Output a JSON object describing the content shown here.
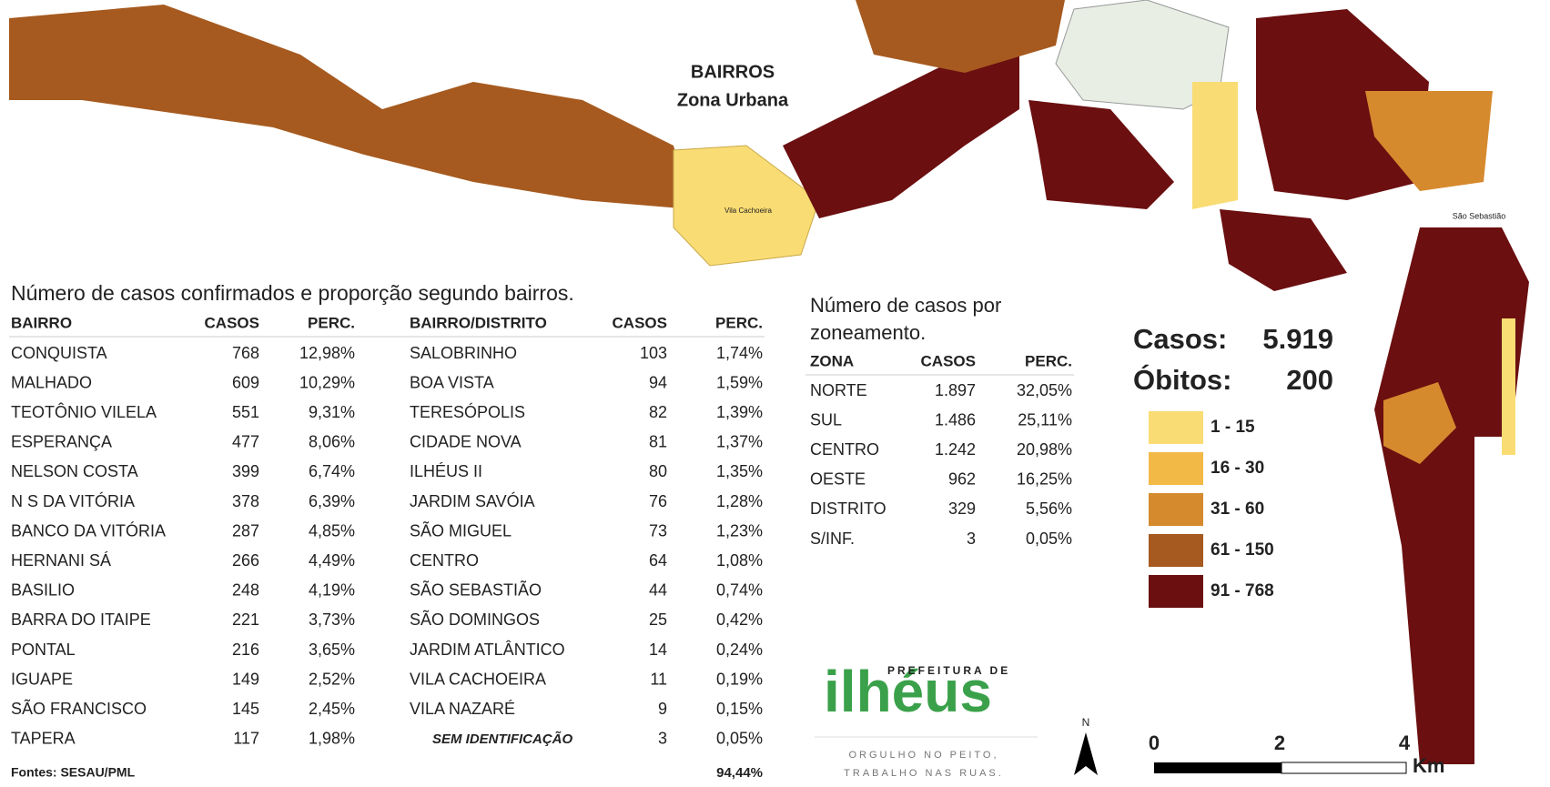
{
  "map": {
    "title": "BAIRROS",
    "subtitle": "Zona Urbana",
    "labels": [
      "Vila Cachoeira",
      "São Sebastião"
    ]
  },
  "table_bairros": {
    "title": "Número de casos confirmados e proporção segundo bairros.",
    "columns": [
      "BAIRRO",
      "CASOS",
      "PERC.",
      "BAIRRO/DISTRITO",
      "CASOS",
      "PERC."
    ],
    "rows": [
      [
        "CONQUISTA",
        "768",
        "12,98%",
        "SALOBRINHO",
        "103",
        "1,74%"
      ],
      [
        "MALHADO",
        "609",
        "10,29%",
        "BOA VISTA",
        "94",
        "1,59%"
      ],
      [
        "TEOTÔNIO VILELA",
        "551",
        "9,31%",
        "TERESÓPOLIS",
        "82",
        "1,39%"
      ],
      [
        "ESPERANÇA",
        "477",
        "8,06%",
        "CIDADE NOVA",
        "81",
        "1,37%"
      ],
      [
        "NELSON COSTA",
        "399",
        "6,74%",
        "ILHÉUS II",
        "80",
        "1,35%"
      ],
      [
        "N S DA VITÓRIA",
        "378",
        "6,39%",
        "JARDIM SAVÓIA",
        "76",
        "1,28%"
      ],
      [
        "BANCO DA VITÓRIA",
        "287",
        "4,85%",
        "SÃO MIGUEL",
        "73",
        "1,23%"
      ],
      [
        "HERNANI SÁ",
        "266",
        "4,49%",
        "CENTRO",
        "64",
        "1,08%"
      ],
      [
        "BASILIO",
        "248",
        "4,19%",
        "SÃO SEBASTIÃO",
        "44",
        "0,74%"
      ],
      [
        "BARRA DO ITAIPE",
        "221",
        "3,73%",
        "SÃO DOMINGOS",
        "25",
        "0,42%"
      ],
      [
        "PONTAL",
        "216",
        "3,65%",
        "JARDIM ATLÂNTICO",
        "14",
        "0,24%"
      ],
      [
        "IGUAPE",
        "149",
        "2,52%",
        "VILA CACHOEIRA",
        "11",
        "0,19%"
      ],
      [
        "SÃO FRANCISCO",
        "145",
        "2,45%",
        "VILA NAZARÉ",
        "9",
        "0,15%"
      ],
      [
        "TAPERA",
        "117",
        "1,98%",
        "SEM IDENTIFICAÇÃO",
        "3",
        "0,05%"
      ]
    ],
    "source": "Fontes: SESAU/PML",
    "total": "94,44%"
  },
  "table_zonas": {
    "title_lines": [
      "Número de casos por",
      "zoneamento."
    ],
    "columns": [
      "ZONA",
      "CASOS",
      "PERC."
    ],
    "rows": [
      [
        "NORTE",
        "1.897",
        "32,05%"
      ],
      [
        "SUL",
        "1.486",
        "25,11%"
      ],
      [
        "CENTRO",
        "1.242",
        "20,98%"
      ],
      [
        "OESTE",
        "962",
        "16,25%"
      ],
      [
        "DISTRITO",
        "329",
        "5,56%"
      ],
      [
        "S/INF.",
        "3",
        "0,05%"
      ]
    ]
  },
  "summary": {
    "cases_label": "Casos:",
    "cases": "5.919",
    "deaths_label": "Óbitos:",
    "deaths": "200"
  },
  "legend": [
    {
      "label": "1 - 15",
      "color": "#f9dc74"
    },
    {
      "label": "16 - 30",
      "color": "#f3b947"
    },
    {
      "label": "31 - 60",
      "color": "#d68a2e"
    },
    {
      "label": "61 - 150",
      "color": "#a65a1f"
    },
    {
      "label": "91 - 768",
      "color": "#6b0f10"
    }
  ],
  "logo": {
    "brand": "PREFEITURA DE",
    "name": "ilhéus",
    "slogan": [
      "ORGULHO NO PEITO,",
      "TRABALHO NAS RUAS."
    ]
  },
  "scale": {
    "ticks": [
      "0",
      "2",
      "4"
    ],
    "unit": "Km"
  },
  "north": "N"
}
